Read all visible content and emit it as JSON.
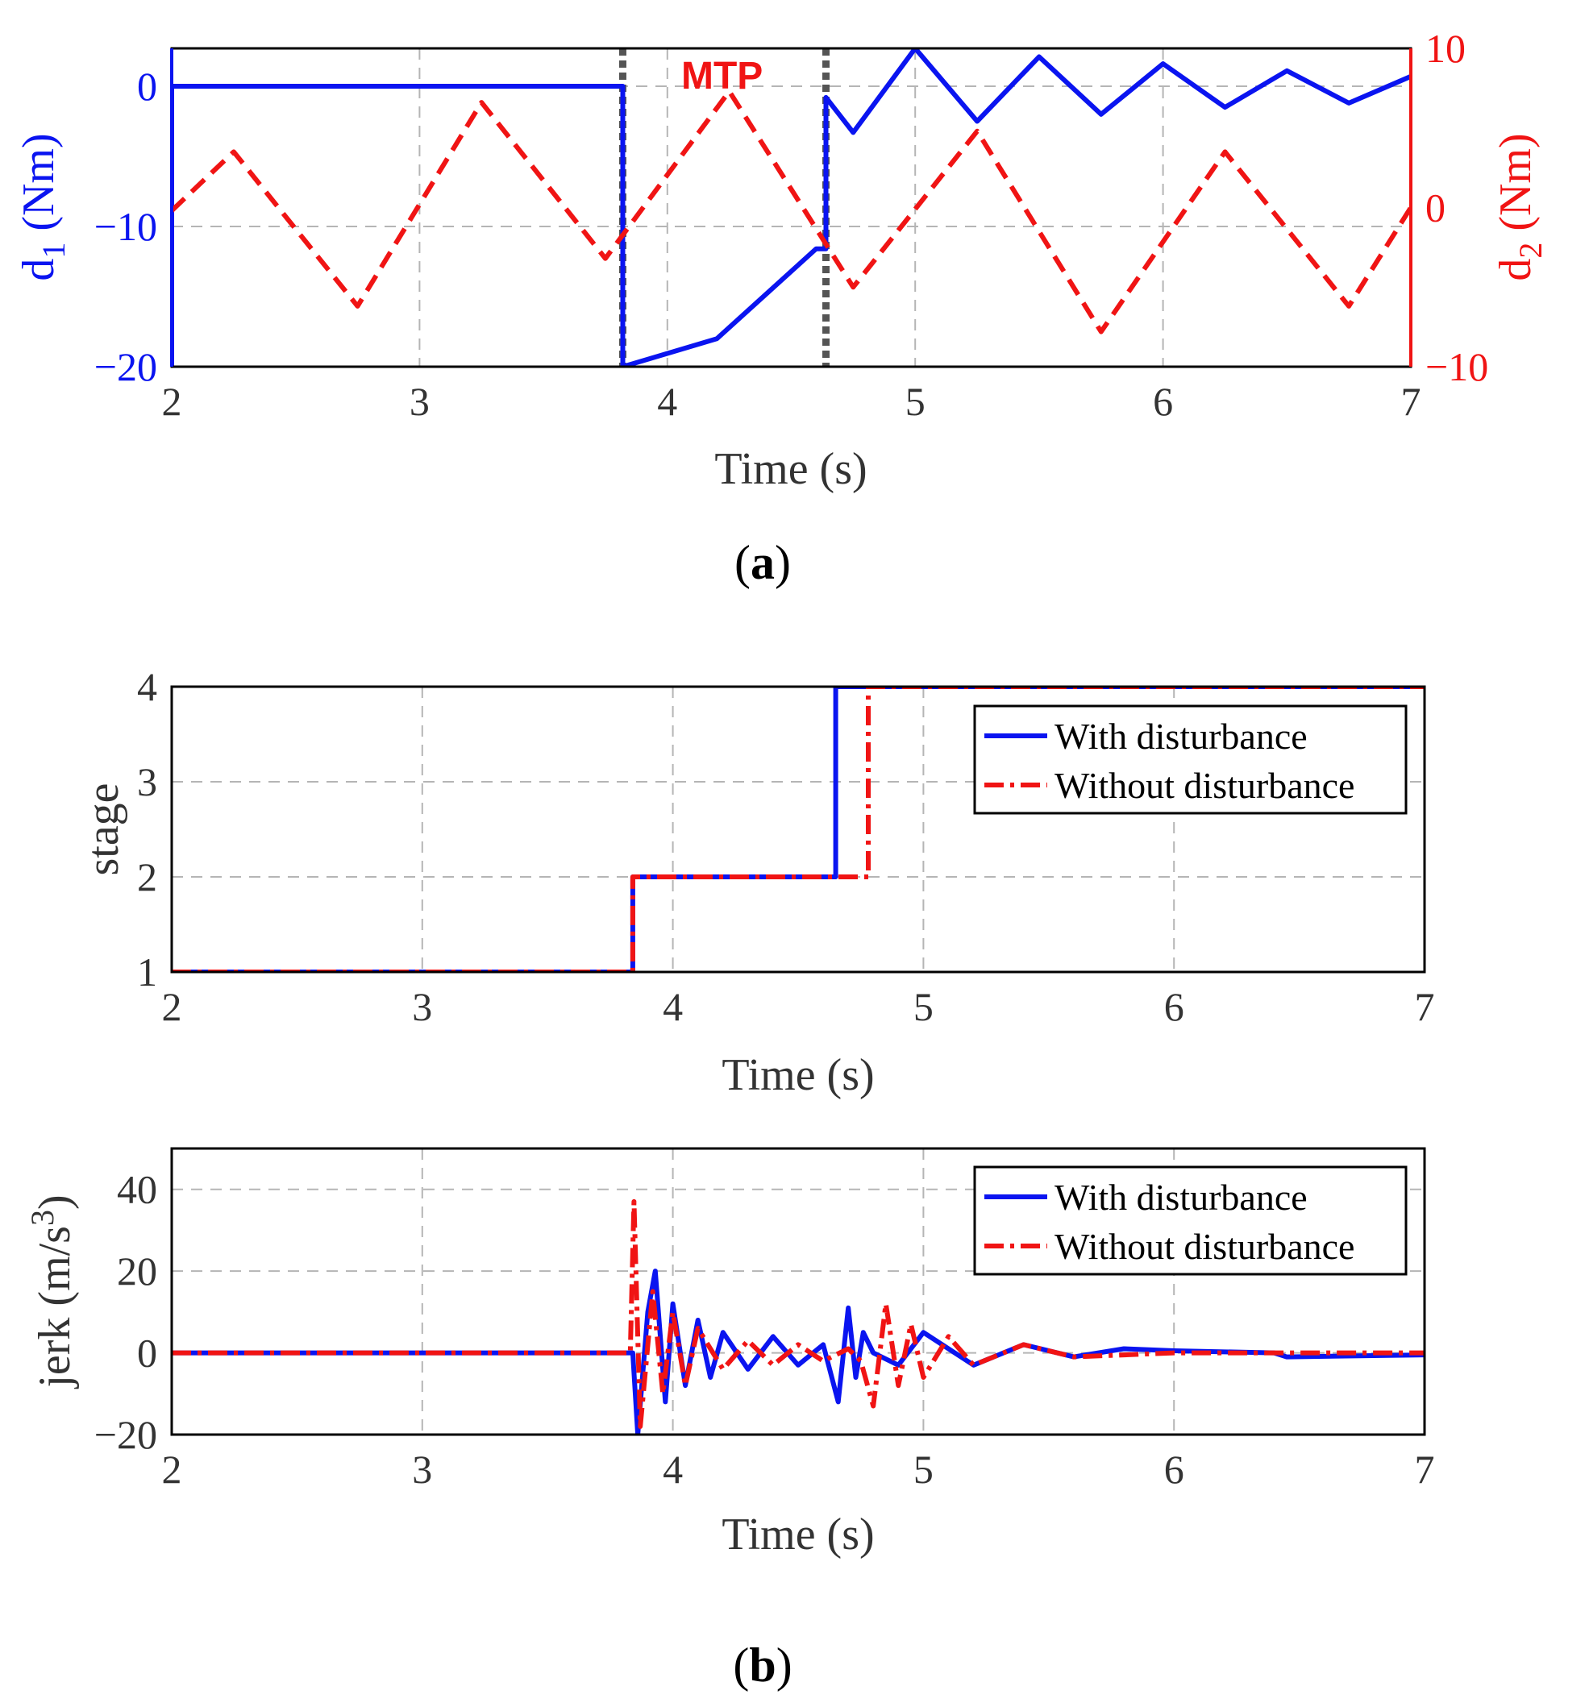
{
  "chart_data": [
    {
      "id": "a",
      "type": "line",
      "panel_label": "(a)",
      "xlabel": "Time (s)",
      "xlim": [
        2,
        7
      ],
      "xticks": [
        "2",
        "3",
        "4",
        "5",
        "6",
        "7"
      ],
      "ylabel_left": "d1 (Nm)",
      "ylabel_right": "d2 (Nm)",
      "ylim_left": [
        -20,
        2.7
      ],
      "ylim_right": [
        -10,
        10
      ],
      "yticks_left": [
        "0",
        "−10",
        "−20"
      ],
      "yticks_right": [
        "10",
        "0",
        "−10"
      ],
      "grid": true,
      "annotation": "MTP",
      "markers": [
        3.82,
        4.64
      ],
      "colors": {
        "left": "#0a14f0",
        "right": "#f01414",
        "marker": "#555555"
      },
      "series": [
        {
          "name": "d1",
          "axis": "left",
          "style": "solid",
          "x": [
            2.0,
            2.0,
            3.82,
            3.82,
            4.2,
            4.6,
            4.6,
            4.64,
            4.64,
            4.75,
            5.0,
            5.25,
            5.5,
            5.75,
            6.0,
            6.25,
            6.5,
            6.75,
            7.0
          ],
          "y": [
            -20,
            0,
            0,
            -20,
            -18,
            -11.6,
            -11.6,
            -11.6,
            -0.8,
            -3.3,
            2.7,
            -2.5,
            2.1,
            -2.0,
            1.6,
            -1.5,
            1.1,
            -1.2,
            0.7
          ]
        },
        {
          "name": "d2",
          "axis": "right",
          "style": "dashed",
          "x": [
            2.0,
            2.25,
            2.75,
            3.25,
            3.75,
            4.25,
            4.75,
            5.25,
            5.75,
            6.25,
            6.75,
            7.0
          ],
          "y": [
            -0.2,
            3.5,
            -6.2,
            6.6,
            -3.2,
            7.3,
            -5.0,
            4.8,
            -7.8,
            3.5,
            -6.2,
            0.0
          ]
        }
      ]
    },
    {
      "id": "b1",
      "type": "line",
      "xlabel": "Time (s)",
      "ylabel": "stage",
      "xlim": [
        2,
        7
      ],
      "ylim": [
        1,
        4
      ],
      "xticks": [
        "2",
        "3",
        "4",
        "5",
        "6",
        "7"
      ],
      "yticks": [
        "1",
        "2",
        "3",
        "4"
      ],
      "grid": true,
      "legend": {
        "placement": "top-right"
      },
      "series": [
        {
          "name": "With disturbance",
          "style": "solid",
          "color": "#0a14f0",
          "x": [
            2.0,
            3.84,
            3.84,
            4.65,
            4.65,
            7.0
          ],
          "y": [
            1,
            1,
            2,
            2,
            4,
            4
          ]
        },
        {
          "name": "Without disturbance",
          "style": "dashdot",
          "color": "#f01414",
          "x": [
            2.0,
            3.84,
            3.84,
            4.78,
            4.78,
            7.0
          ],
          "y": [
            1,
            1,
            2,
            2,
            4,
            4
          ]
        }
      ]
    },
    {
      "id": "b2",
      "type": "line",
      "panel_label": "(b)",
      "xlabel": "Time (s)",
      "ylabel": "jerk (m/s3)",
      "xlim": [
        2,
        7
      ],
      "ylim": [
        -20,
        50
      ],
      "xticks": [
        "2",
        "3",
        "4",
        "5",
        "6",
        "7"
      ],
      "yticks": [
        "−20",
        "0",
        "20",
        "40"
      ],
      "grid": true,
      "legend": {
        "placement": "top-right"
      },
      "series": [
        {
          "name": "With disturbance",
          "style": "solid",
          "color": "#0a14f0",
          "x": [
            2.0,
            3.5,
            3.84,
            3.86,
            3.9,
            3.93,
            3.97,
            4.0,
            4.05,
            4.1,
            4.15,
            4.2,
            4.3,
            4.4,
            4.5,
            4.6,
            4.66,
            4.7,
            4.73,
            4.76,
            4.8,
            4.9,
            5.0,
            5.2,
            5.4,
            5.6,
            5.8,
            6.0,
            6.4,
            6.45,
            7.0
          ],
          "y": [
            0,
            0,
            0,
            -20,
            10,
            20,
            -12,
            12,
            -8,
            8,
            -6,
            5,
            -4,
            4,
            -3,
            2,
            -12,
            11,
            -6,
            5,
            0,
            -3,
            5,
            -3,
            2,
            -1,
            1,
            0.5,
            0,
            -1,
            -0.5
          ]
        },
        {
          "name": "Without disturbance",
          "style": "dashdot",
          "color": "#f01414",
          "x": [
            2.0,
            3.5,
            3.83,
            3.845,
            3.87,
            3.92,
            3.96,
            4.0,
            4.05,
            4.1,
            4.2,
            4.3,
            4.4,
            4.5,
            4.6,
            4.7,
            4.75,
            4.8,
            4.85,
            4.9,
            4.95,
            5.0,
            5.1,
            5.2,
            5.4,
            5.6,
            6.0,
            7.0
          ],
          "y": [
            0,
            0,
            0,
            37,
            -18,
            15,
            -10,
            10,
            -8,
            6,
            -4,
            3,
            -3,
            2,
            -2,
            1,
            -2,
            -13,
            12,
            -8,
            7,
            -6,
            4,
            -3,
            2,
            -1,
            0,
            0
          ]
        }
      ]
    }
  ],
  "legend": {
    "with": "With disturbance",
    "without": "Without disturbance"
  },
  "labels": {
    "a_d1_main": "d",
    "a_d1_sub": "1",
    "a_d1_unit": " (Nm)",
    "a_d2_main": "d",
    "a_d2_sub": "2",
    "a_d2_unit": " (Nm)",
    "jerk_main": "jerk (m/s",
    "jerk_sup": "3",
    "jerk_close": ")",
    "panel_a_open": "(",
    "panel_a_letter": "a",
    "panel_a_close": ")",
    "panel_b_open": "(",
    "panel_b_letter": "b",
    "panel_b_close": ")"
  }
}
